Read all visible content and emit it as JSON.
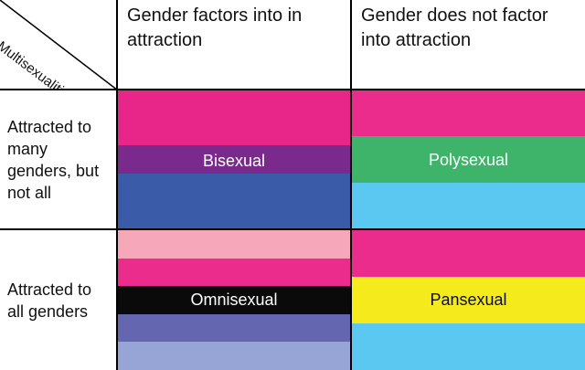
{
  "corner": {
    "label": "Multisexualities"
  },
  "columns": [
    {
      "label": "Gender factors into in attraction"
    },
    {
      "label": "Gender does not factor into attraction"
    }
  ],
  "rows": [
    {
      "label": "Attracted to many genders, but not all"
    },
    {
      "label": "Attracted to all genders"
    }
  ],
  "flags": {
    "bisexual": {
      "label": "Bisexual",
      "label_color": "#ffffff",
      "stripes": [
        {
          "color": "#e8268a",
          "weight": 2
        },
        {
          "color": "#7a2a8c",
          "weight": 1
        },
        {
          "color": "#3a5ba8",
          "weight": 2
        }
      ]
    },
    "polysexual": {
      "label": "Polysexual",
      "label_color": "#ffffff",
      "stripes": [
        {
          "color": "#ec2c8c",
          "weight": 1
        },
        {
          "color": "#3db46a",
          "weight": 1
        },
        {
          "color": "#5bc8f2",
          "weight": 1
        }
      ]
    },
    "omnisexual": {
      "label": "Omnisexual",
      "label_color": "#ffffff",
      "stripes": [
        {
          "color": "#f6a7b9",
          "weight": 1
        },
        {
          "color": "#ec2c8c",
          "weight": 1
        },
        {
          "color": "#0a0a0a",
          "weight": 1
        },
        {
          "color": "#6466b0",
          "weight": 1
        },
        {
          "color": "#97a4d6",
          "weight": 1
        }
      ]
    },
    "pansexual": {
      "label": "Pansexual",
      "label_color": "#111111",
      "stripes": [
        {
          "color": "#ec2c8c",
          "weight": 1
        },
        {
          "color": "#f5eb1c",
          "weight": 1
        },
        {
          "color": "#5bc8f2",
          "weight": 1
        }
      ]
    }
  }
}
